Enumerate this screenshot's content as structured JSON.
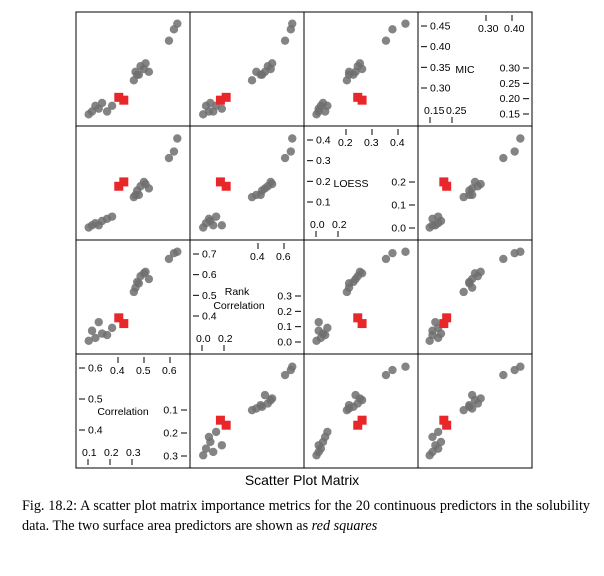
{
  "figure": {
    "caption_prefix": "Fig. 18.2: A scatter plot matrix importance metrics for the 20 continuous predictors in the solubility data. The two surface area predictors are shown as ",
    "caption_emph": "red squares",
    "colors": {
      "points": "#6e6e6e",
      "highlight": "#e8272a",
      "axis": "#000000"
    }
  },
  "chart_data": {
    "type": "scatter",
    "title": "Scatter Plot Matrix",
    "variables": [
      "Correlation",
      "Rank Correlation",
      "LOESS",
      "MIC"
    ],
    "diagonal": [
      {
        "label_lines": [
          "Correlation"
        ],
        "ticks_left": [
          "0.6",
          "0.5",
          "0.4"
        ],
        "ticks_bottom": [
          "0.1",
          "0.2",
          "0.3"
        ],
        "ticks_top": [
          "0.4",
          "0.5",
          "0.6"
        ],
        "ticks_right": [
          "0.1",
          "0.2",
          "0.3"
        ]
      },
      {
        "label_lines": [
          "Rank",
          "Correlation"
        ],
        "ticks_left": [
          "0.7",
          "0.6",
          "0.5",
          "0.4"
        ],
        "ticks_bottom": [
          "0.0",
          "0.2"
        ],
        "ticks_top": [
          "0.4",
          "0.6"
        ],
        "ticks_right": [
          "0.3",
          "0.2",
          "0.1",
          "0.0"
        ]
      },
      {
        "label_lines": [
          "LOESS"
        ],
        "ticks_left": [
          "0.4",
          "0.3",
          "0.2",
          "0.1"
        ],
        "ticks_bottom": [
          "0.0",
          "0.2"
        ],
        "ticks_top": [
          "0.2",
          "0.3",
          "0.4"
        ],
        "ticks_right": [
          "0.2",
          "0.1",
          "0.0"
        ]
      },
      {
        "label_lines": [
          "MIC"
        ],
        "ticks_left": [
          "0.45",
          "0.40",
          "0.35",
          "0.30"
        ],
        "ticks_bottom": [
          "0.15",
          "0.25"
        ],
        "ticks_top": [
          "0.30",
          "0.40"
        ],
        "ticks_right": [
          "0.30",
          "0.25",
          "0.20",
          "0.15"
        ]
      }
    ],
    "predictors": [
      {
        "cor": 0.09,
        "rank": 0.05,
        "loess": 0.01,
        "mic": 0.14,
        "surface_area": false
      },
      {
        "cor": 0.11,
        "rank": 0.12,
        "loess": 0.02,
        "mic": 0.15,
        "surface_area": false
      },
      {
        "cor": 0.13,
        "rank": 0.07,
        "loess": 0.03,
        "mic": 0.17,
        "surface_area": false
      },
      {
        "cor": 0.15,
        "rank": 0.18,
        "loess": 0.02,
        "mic": 0.16,
        "surface_area": false
      },
      {
        "cor": 0.17,
        "rank": 0.1,
        "loess": 0.04,
        "mic": 0.18,
        "surface_area": false
      },
      {
        "cor": 0.2,
        "rank": 0.09,
        "loess": 0.05,
        "mic": 0.15,
        "surface_area": false
      },
      {
        "cor": 0.23,
        "rank": 0.14,
        "loess": 0.06,
        "mic": 0.17,
        "surface_area": false
      },
      {
        "cor": 0.36,
        "rank": 0.39,
        "loess": 0.15,
        "mic": 0.26,
        "surface_area": false
      },
      {
        "cor": 0.37,
        "rank": 0.42,
        "loess": 0.16,
        "mic": 0.29,
        "surface_area": false
      },
      {
        "cor": 0.39,
        "rank": 0.45,
        "loess": 0.16,
        "mic": 0.28,
        "surface_area": false
      },
      {
        "cor": 0.4,
        "rank": 0.5,
        "loess": 0.2,
        "mic": 0.31,
        "surface_area": false
      },
      {
        "cor": 0.42,
        "rank": 0.52,
        "loess": 0.22,
        "mic": 0.3,
        "surface_area": false
      },
      {
        "cor": 0.43,
        "rank": 0.53,
        "loess": 0.21,
        "mic": 0.32,
        "surface_area": false
      },
      {
        "cor": 0.45,
        "rank": 0.48,
        "loess": 0.19,
        "mic": 0.29,
        "surface_area": false
      },
      {
        "cor": 0.38,
        "rank": 0.46,
        "loess": 0.18,
        "mic": 0.28,
        "surface_area": false
      },
      {
        "cor": 0.57,
        "rank": 0.62,
        "loess": 0.33,
        "mic": 0.4,
        "surface_area": false
      },
      {
        "cor": 0.6,
        "rank": 0.66,
        "loess": 0.36,
        "mic": 0.44,
        "surface_area": false
      },
      {
        "cor": 0.62,
        "rank": 0.67,
        "loess": 0.42,
        "mic": 0.46,
        "surface_area": false
      },
      {
        "cor": 0.27,
        "rank": 0.21,
        "loess": 0.2,
        "mic": 0.2,
        "surface_area": true
      },
      {
        "cor": 0.3,
        "rank": 0.17,
        "loess": 0.22,
        "mic": 0.19,
        "surface_area": true
      }
    ],
    "xlabel": "",
    "ylabel": "",
    "grid": false,
    "legend": "none"
  }
}
